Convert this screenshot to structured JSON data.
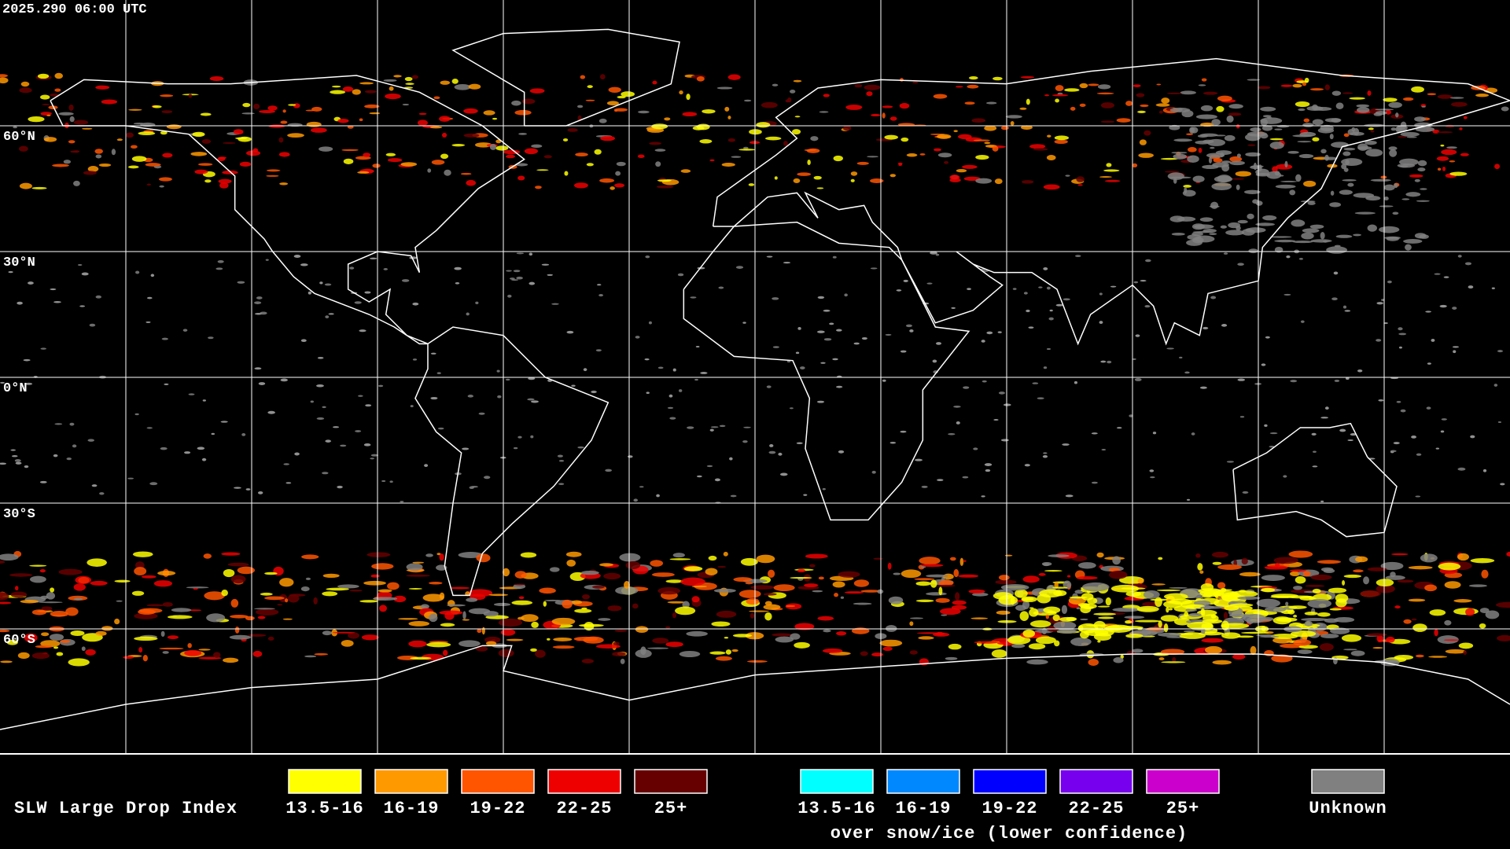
{
  "header": {
    "timestamp": "2025.290 06:00 UTC"
  },
  "map": {
    "lat_labels": [
      "60°N",
      "30°N",
      "0°N",
      "30°S",
      "60°S"
    ]
  },
  "legend": {
    "title": "SLW Large Drop Index",
    "items": [
      {
        "label": "13.5-16",
        "color": "#ffff00"
      },
      {
        "label": "16-19",
        "color": "#ff9900"
      },
      {
        "label": "19-22",
        "color": "#ff5500"
      },
      {
        "label": "22-25",
        "color": "#ee0000"
      },
      {
        "label": "25+",
        "color": "#660000"
      }
    ],
    "snow_items": [
      {
        "label": "13.5-16",
        "color": "#00ffff"
      },
      {
        "label": "16-19",
        "color": "#0088ff"
      },
      {
        "label": "19-22",
        "color": "#0000ff"
      },
      {
        "label": "22-25",
        "color": "#7700ee"
      },
      {
        "label": "25+",
        "color": "#cc00cc"
      }
    ],
    "snow_note": "over snow/ice (lower confidence)",
    "unknown": {
      "label": "Unknown",
      "color": "#808080"
    }
  }
}
